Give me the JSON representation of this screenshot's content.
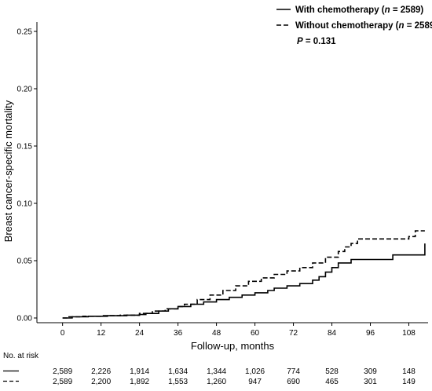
{
  "chart_data": {
    "type": "line",
    "title": "",
    "xlabel": "Follow-up, months",
    "ylabel": "Breast cancer-specific mortality",
    "xlim": [
      -8,
      114
    ],
    "ylim": [
      0,
      0.25
    ],
    "x_ticks": [
      0,
      12,
      24,
      36,
      48,
      60,
      72,
      84,
      96,
      108
    ],
    "x_tick_labels": [
      "0",
      "12",
      "24",
      "36",
      "48",
      "60",
      "72",
      "84",
      "96",
      "108"
    ],
    "y_ticks": [
      0,
      0.05,
      0.1,
      0.15,
      0.2,
      0.25
    ],
    "y_tick_labels": [
      "0.00",
      "0.05",
      "0.10",
      "0.15",
      "0.20",
      "0.25"
    ],
    "grid": false,
    "legend_position": "top-right",
    "series": [
      {
        "name": "With chemotherapy",
        "n_label": "2589",
        "style": "solid",
        "color": "#000000",
        "points": [
          [
            0,
            0
          ],
          [
            3,
            0
          ],
          [
            3,
            0.001
          ],
          [
            8,
            0.001
          ],
          [
            8,
            0.0015
          ],
          [
            14,
            0.002
          ],
          [
            20,
            0.0025
          ],
          [
            24,
            0.003
          ],
          [
            26,
            0.004
          ],
          [
            30,
            0.006
          ],
          [
            33,
            0.008
          ],
          [
            36,
            0.01
          ],
          [
            40,
            0.012
          ],
          [
            44,
            0.014
          ],
          [
            48,
            0.016
          ],
          [
            52,
            0.018
          ],
          [
            56,
            0.02
          ],
          [
            60,
            0.022
          ],
          [
            64,
            0.024
          ],
          [
            66,
            0.026
          ],
          [
            70,
            0.028
          ],
          [
            74,
            0.03
          ],
          [
            78,
            0.033
          ],
          [
            80,
            0.036
          ],
          [
            82,
            0.04
          ],
          [
            84,
            0.044
          ],
          [
            86,
            0.048
          ],
          [
            90,
            0.051
          ],
          [
            100,
            0.051
          ],
          [
            103,
            0.055
          ],
          [
            112,
            0.055
          ],
          [
            113,
            0.065
          ]
        ]
      },
      {
        "name": "Without chemotherapy",
        "n_label": "2589",
        "style": "dashed",
        "color": "#000000",
        "points": [
          [
            0,
            0
          ],
          [
            2,
            0
          ],
          [
            2,
            0.001
          ],
          [
            6,
            0.0015
          ],
          [
            12,
            0.002
          ],
          [
            18,
            0.0025
          ],
          [
            24,
            0.004
          ],
          [
            28,
            0.006
          ],
          [
            32,
            0.008
          ],
          [
            36,
            0.01
          ],
          [
            38,
            0.012
          ],
          [
            42,
            0.016
          ],
          [
            46,
            0.02
          ],
          [
            50,
            0.024
          ],
          [
            54,
            0.028
          ],
          [
            58,
            0.032
          ],
          [
            62,
            0.035
          ],
          [
            66,
            0.038
          ],
          [
            70,
            0.041
          ],
          [
            74,
            0.044
          ],
          [
            78,
            0.048
          ],
          [
            82,
            0.053
          ],
          [
            86,
            0.058
          ],
          [
            88,
            0.062
          ],
          [
            90,
            0.065
          ],
          [
            92,
            0.069
          ],
          [
            103,
            0.069
          ],
          [
            108,
            0.071
          ],
          [
            110,
            0.076
          ],
          [
            113,
            0.076
          ]
        ]
      }
    ],
    "annotations": [
      "P = 0.131"
    ],
    "risk_table": {
      "title": "No. at risk",
      "times": [
        0,
        12,
        24,
        36,
        48,
        60,
        72,
        84,
        96,
        108
      ],
      "rows": [
        {
          "style": "solid",
          "values": [
            "2,589",
            "2,226",
            "1,914",
            "1,634",
            "1,344",
            "1,026",
            "774",
            "528",
            "309",
            "148"
          ]
        },
        {
          "style": "dashed",
          "values": [
            "2,589",
            "2,200",
            "1,892",
            "1,553",
            "1,260",
            "947",
            "690",
            "465",
            "301",
            "149"
          ]
        }
      ]
    }
  }
}
